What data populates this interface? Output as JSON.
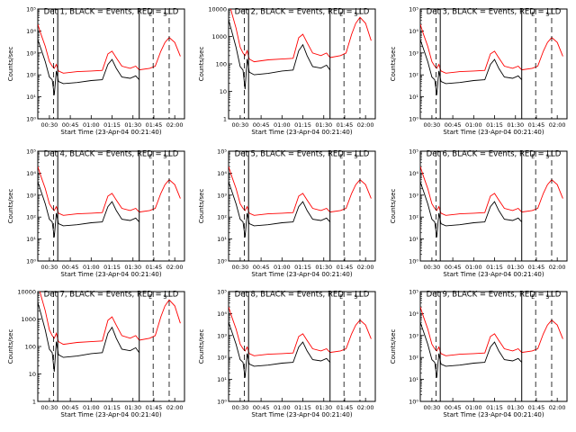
{
  "chart_data": {
    "type": "line",
    "layout": "3x3 grid",
    "y_scale": "log",
    "xlabel": "Start Time (23-Apr-04 00:21:40)",
    "x_range": [
      "00:21:40",
      "02:07:00"
    ],
    "x_ticks": [
      "00:30",
      "00:45",
      "01:00",
      "01:15",
      "01:30",
      "01:45",
      "02:00"
    ],
    "colors": {
      "events": "#000000",
      "lld": "#ff0000"
    },
    "markers": {
      "dashed_lines": [
        "00:33:00",
        "01:44:30",
        "01:56:00"
      ],
      "solid_lines": [
        "00:36:00",
        "01:34:30"
      ],
      "letters": [
        {
          "text": "E",
          "time": "01:42:30"
        },
        {
          "text": "S",
          "time": "01:53:00"
        }
      ]
    },
    "panels": [
      {
        "title": "Det 1, BLACK = Events, RED = LLD",
        "ylabel": "Counts/sec",
        "ylim": [
          1,
          100000
        ],
        "yticks": [
          "10⁰",
          "10¹",
          "10²",
          "10³",
          "10⁴",
          "10⁵"
        ],
        "yscale_max_exp": 5
      },
      {
        "title": "Det 2, BLACK = Events, RED = LLD",
        "ylabel": "Counts/sec",
        "ylim": [
          1,
          10000
        ],
        "yticks": [
          "1",
          "10",
          "100",
          "1000",
          "10000"
        ],
        "yscale_max_exp": 4
      },
      {
        "title": "Det 3, BLACK = Events, RED = LLD",
        "ylabel": "Counts/sec",
        "ylim": [
          1,
          100000
        ],
        "yticks": [
          "10⁰",
          "10¹",
          "10²",
          "10³",
          "10⁴",
          "10⁵"
        ],
        "yscale_max_exp": 5
      },
      {
        "title": "Det 4, BLACK = Events, RED = LLD",
        "ylabel": "Counts/sec",
        "ylim": [
          1,
          100000
        ],
        "yticks": [
          "10⁰",
          "10¹",
          "10²",
          "10³",
          "10⁴",
          "10⁵"
        ],
        "yscale_max_exp": 5
      },
      {
        "title": "Det 5, BLACK = Events, RED = LLD",
        "ylabel": "Counts/sec",
        "ylim": [
          1,
          100000
        ],
        "yticks": [
          "10⁰",
          "10¹",
          "10²",
          "10³",
          "10⁴",
          "10⁵"
        ],
        "yscale_max_exp": 5
      },
      {
        "title": "Det 6, BLACK = Events, RED = LLD",
        "ylabel": "Counts/sec",
        "ylim": [
          1,
          100000
        ],
        "yticks": [
          "10⁰",
          "10¹",
          "10²",
          "10³",
          "10⁴",
          "10⁵"
        ],
        "yscale_max_exp": 5
      },
      {
        "title": "Det 7, BLACK = Events, RED = LLD",
        "ylabel": "Counts/sec",
        "ylim": [
          1,
          10000
        ],
        "yticks": [
          "1",
          "10",
          "100",
          "1000",
          "10000"
        ],
        "yscale_max_exp": 4
      },
      {
        "title": "Det 8, BLACK = Events, RED = LLD",
        "ylabel": "Counts/sec",
        "ylim": [
          1,
          100000
        ],
        "yticks": [
          "10⁰",
          "10¹",
          "10²",
          "10³",
          "10⁴",
          "10⁵"
        ],
        "yscale_max_exp": 5
      },
      {
        "title": "Det 9, BLACK = Events, RED = LLD",
        "ylabel": "Counts/sec",
        "ylim": [
          1,
          100000
        ],
        "yticks": [
          "10⁰",
          "10¹",
          "10²",
          "10³",
          "10⁴",
          "10⁵"
        ],
        "yscale_max_exp": 5
      }
    ],
    "series": [
      {
        "name": "Events",
        "color": "#000000",
        "x": [
          "00:21:40",
          "00:24:00",
          "00:27:00",
          "00:30:00",
          "00:32:00",
          "00:33:30",
          "00:35:00",
          "00:36:30",
          "00:40:00",
          "00:50:00",
          "01:00:00",
          "01:08:00",
          "01:12:00",
          "01:15:00",
          "01:18:00",
          "01:22:00",
          "01:28:00",
          "01:32:00",
          "01:34:30"
        ],
        "y": [
          4000,
          1500,
          400,
          80,
          60,
          12,
          150,
          50,
          40,
          45,
          55,
          60,
          300,
          500,
          200,
          80,
          70,
          90,
          60
        ]
      },
      {
        "name": "LLD",
        "color": "#ff0000",
        "x": [
          "00:21:40",
          "00:24:00",
          "00:27:00",
          "00:30:00",
          "00:32:00",
          "00:33:30",
          "00:35:00",
          "00:36:30",
          "00:40:00",
          "00:50:00",
          "01:00:00",
          "01:08:00",
          "01:12:00",
          "01:15:00",
          "01:18:00",
          "01:22:00",
          "01:28:00",
          "01:32:00",
          "01:34:30",
          "01:42:00",
          "01:46:00",
          "01:50:00",
          "01:53:00",
          "01:56:00",
          "02:00:00",
          "02:04:00"
        ],
        "y": [
          20000,
          7000,
          2000,
          400,
          250,
          200,
          300,
          150,
          120,
          140,
          150,
          160,
          900,
          1200,
          600,
          250,
          200,
          250,
          170,
          200,
          250,
          1200,
          3000,
          5000,
          3000,
          700
        ]
      }
    ]
  }
}
